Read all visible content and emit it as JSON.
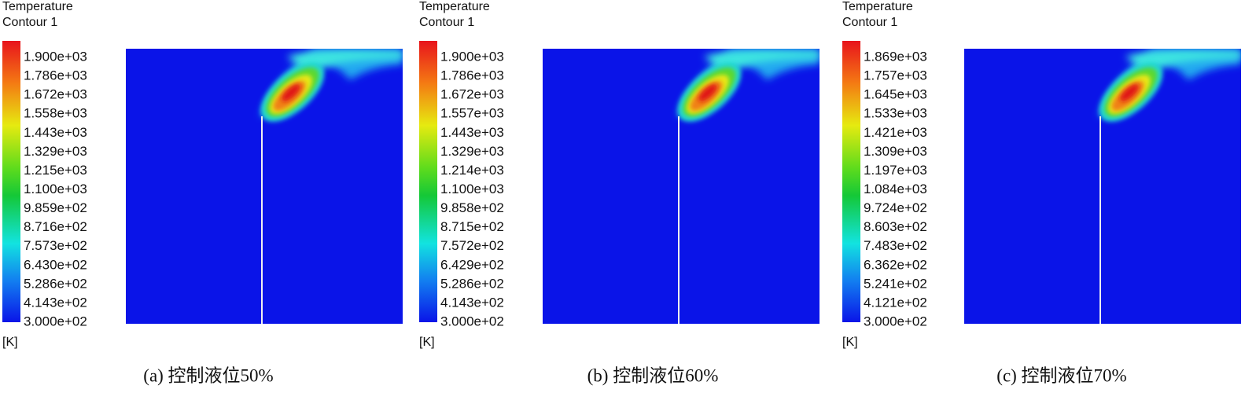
{
  "panels": [
    {
      "title": [
        "Temperature",
        "Contour 1"
      ],
      "levels": [
        "1.900e+03",
        "1.786e+03",
        "1.672e+03",
        "1.558e+03",
        "1.443e+03",
        "1.329e+03",
        "1.215e+03",
        "1.100e+03",
        "9.859e+02",
        "8.716e+02",
        "7.573e+02",
        "6.430e+02",
        "5.286e+02",
        "4.143e+02",
        "3.000e+02"
      ],
      "unit": "[K]",
      "caption": "(a) 控制液位50%"
    },
    {
      "title": [
        "Temperature",
        "Contour 1"
      ],
      "levels": [
        "1.900e+03",
        "1.786e+03",
        "1.672e+03",
        "1.557e+03",
        "1.443e+03",
        "1.329e+03",
        "1.214e+03",
        "1.100e+03",
        "9.858e+02",
        "8.715e+02",
        "7.572e+02",
        "6.429e+02",
        "5.286e+02",
        "4.143e+02",
        "3.000e+02"
      ],
      "unit": "[K]",
      "caption": "(b) 控制液位60%"
    },
    {
      "title": [
        "Temperature",
        "Contour 1"
      ],
      "levels": [
        "1.869e+03",
        "1.757e+03",
        "1.645e+03",
        "1.533e+03",
        "1.421e+03",
        "1.309e+03",
        "1.197e+03",
        "1.084e+03",
        "9.724e+02",
        "8.603e+02",
        "7.483e+02",
        "6.362e+02",
        "5.241e+02",
        "4.121e+02",
        "3.000e+02"
      ],
      "unit": "[K]",
      "caption": "(c) 控制液位70%"
    }
  ]
}
